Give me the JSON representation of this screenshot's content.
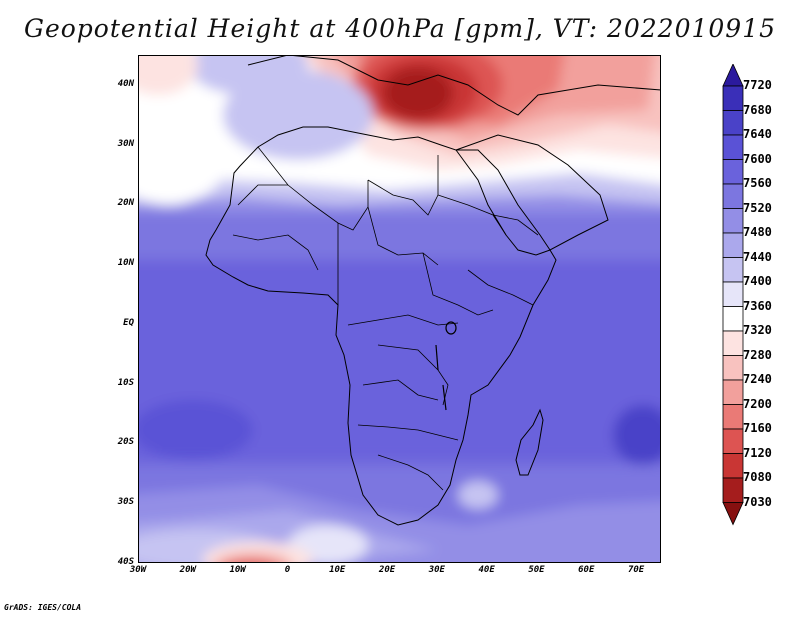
{
  "title": "Geopotential Height at 400hPa [gpm], VT: 2022010915",
  "credit": "GrADS: IGES/COLA",
  "lat_ticks": [
    {
      "label": "40N",
      "lat": 40
    },
    {
      "label": "30N",
      "lat": 30
    },
    {
      "label": "20N",
      "lat": 20
    },
    {
      "label": "10N",
      "lat": 10
    },
    {
      "label": "EQ",
      "lat": 0
    },
    {
      "label": "10S",
      "lat": -10
    },
    {
      "label": "20S",
      "lat": -20
    },
    {
      "label": "30S",
      "lat": -30
    },
    {
      "label": "40S",
      "lat": -40
    }
  ],
  "lon_ticks": [
    {
      "label": "30W",
      "lon": -30
    },
    {
      "label": "20W",
      "lon": -20
    },
    {
      "label": "10W",
      "lon": -10
    },
    {
      "label": "0",
      "lon": 0
    },
    {
      "label": "10E",
      "lon": 10
    },
    {
      "label": "20E",
      "lon": 20
    },
    {
      "label": "30E",
      "lon": 30
    },
    {
      "label": "40E",
      "lon": 40
    },
    {
      "label": "50E",
      "lon": 50
    },
    {
      "label": "60E",
      "lon": 60
    },
    {
      "label": "70E",
      "lon": 70
    }
  ],
  "domain": {
    "lon_min": -30,
    "lon_max": 75,
    "lat_min": -40,
    "lat_max": 45
  },
  "colorbar": {
    "levels": [
      "7720",
      "7680",
      "7640",
      "7600",
      "7560",
      "7520",
      "7480",
      "7440",
      "7400",
      "7360",
      "7320",
      "7280",
      "7240",
      "7200",
      "7160",
      "7120",
      "7080",
      "7030"
    ],
    "colors": [
      "#2b1a9e",
      "#3a2fb8",
      "#4a42c8",
      "#5a52d6",
      "#6a62dc",
      "#7c76e0",
      "#938ee6",
      "#aba8ec",
      "#c6c4f2",
      "#e6e5f9",
      "#ffffff",
      "#fde3e1",
      "#f8c2bf",
      "#f2a09c",
      "#ea7a76",
      "#dd5452",
      "#c93634",
      "#a51d1d",
      "#861010"
    ]
  }
}
